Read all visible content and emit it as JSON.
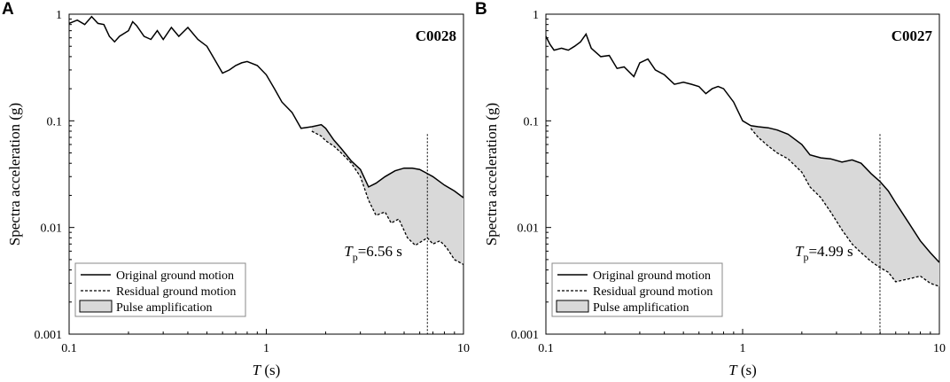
{
  "chart_data": [
    {
      "panel": "A",
      "type": "line",
      "record": "C0028",
      "xlabel_main": "T",
      "xlabel_unit": " (s)",
      "ylabel": "Spectra acceleration (g)",
      "xscale": "log",
      "yscale": "log",
      "xlim": [
        0.1,
        10
      ],
      "ylim": [
        0.001,
        1
      ],
      "x_ticks": [
        "0.1",
        "1",
        "10"
      ],
      "y_ticks": [
        "0.001",
        "0.01",
        "0.1",
        "1"
      ],
      "tp_main": "T",
      "tp_sub": "p",
      "tp_value": "=6.56 s",
      "tp": 6.56,
      "legend": [
        "Original ground motion",
        "Residual ground motion",
        "Pulse amplification"
      ],
      "series": [
        {
          "name": "Original ground motion",
          "x": [
            0.1,
            0.11,
            0.12,
            0.13,
            0.14,
            0.15,
            0.16,
            0.17,
            0.18,
            0.2,
            0.21,
            0.22,
            0.24,
            0.26,
            0.28,
            0.3,
            0.33,
            0.36,
            0.4,
            0.45,
            0.5,
            0.55,
            0.6,
            0.65,
            0.7,
            0.75,
            0.8,
            0.9,
            1.0,
            1.1,
            1.2,
            1.35,
            1.5,
            1.7,
            1.9,
            2.0,
            2.2,
            2.4,
            2.7,
            3.0,
            3.3,
            3.6,
            4.0,
            4.5,
            5.0,
            5.5,
            6.0,
            6.56,
            7.0,
            8.0,
            9.0,
            10.0
          ],
          "y": [
            0.82,
            0.88,
            0.8,
            0.95,
            0.82,
            0.8,
            0.62,
            0.55,
            0.62,
            0.7,
            0.85,
            0.78,
            0.62,
            0.58,
            0.7,
            0.58,
            0.75,
            0.62,
            0.75,
            0.58,
            0.5,
            0.37,
            0.28,
            0.3,
            0.33,
            0.35,
            0.36,
            0.33,
            0.27,
            0.2,
            0.15,
            0.12,
            0.085,
            0.088,
            0.092,
            0.085,
            0.066,
            0.055,
            0.042,
            0.035,
            0.024,
            0.026,
            0.03,
            0.034,
            0.036,
            0.036,
            0.035,
            0.032,
            0.03,
            0.025,
            0.022,
            0.019
          ]
        },
        {
          "name": "Residual ground motion",
          "x": [
            1.7,
            1.9,
            2.0,
            2.2,
            2.4,
            2.7,
            3.0,
            3.3,
            3.6,
            4.0,
            4.3,
            4.7,
            5.2,
            5.7,
            6.2,
            6.56,
            7.0,
            7.6,
            8.2,
            9.0,
            10.0
          ],
          "y": [
            0.08,
            0.072,
            0.065,
            0.058,
            0.05,
            0.04,
            0.03,
            0.018,
            0.013,
            0.014,
            0.011,
            0.012,
            0.008,
            0.0068,
            0.0075,
            0.008,
            0.007,
            0.0075,
            0.0065,
            0.005,
            0.0045
          ]
        }
      ]
    },
    {
      "panel": "B",
      "type": "line",
      "record": "C0027",
      "xlabel_main": "T",
      "xlabel_unit": " (s)",
      "ylabel": "Spectra acceleration (g)",
      "xscale": "log",
      "yscale": "log",
      "xlim": [
        0.1,
        10
      ],
      "ylim": [
        0.001,
        1
      ],
      "x_ticks": [
        "0.1",
        "1",
        "10"
      ],
      "y_ticks": [
        "0.001",
        "0.01",
        "0.1",
        "1"
      ],
      "tp_main": "T",
      "tp_sub": "p",
      "tp_value": "=4.99 s",
      "tp": 4.99,
      "legend": [
        "Original ground motion",
        "Residual ground motion",
        "Pulse amplification"
      ],
      "series": [
        {
          "name": "Original ground motion",
          "x": [
            0.1,
            0.105,
            0.11,
            0.12,
            0.13,
            0.14,
            0.15,
            0.16,
            0.17,
            0.19,
            0.21,
            0.23,
            0.25,
            0.28,
            0.3,
            0.33,
            0.36,
            0.4,
            0.45,
            0.5,
            0.55,
            0.6,
            0.65,
            0.7,
            0.75,
            0.8,
            0.9,
            1.0,
            1.1,
            1.2,
            1.35,
            1.5,
            1.7,
            2.0,
            2.2,
            2.5,
            2.8,
            3.2,
            3.6,
            4.0,
            4.5,
            4.99,
            5.5,
            6.0,
            7.0,
            8.0,
            9.0,
            10.0
          ],
          "y": [
            0.62,
            0.52,
            0.46,
            0.48,
            0.46,
            0.5,
            0.55,
            0.65,
            0.48,
            0.4,
            0.41,
            0.31,
            0.32,
            0.26,
            0.35,
            0.38,
            0.3,
            0.27,
            0.22,
            0.23,
            0.22,
            0.21,
            0.18,
            0.2,
            0.21,
            0.2,
            0.15,
            0.1,
            0.09,
            0.088,
            0.086,
            0.082,
            0.075,
            0.06,
            0.048,
            0.045,
            0.044,
            0.041,
            0.043,
            0.04,
            0.032,
            0.027,
            0.022,
            0.017,
            0.011,
            0.0075,
            0.0058,
            0.0047
          ]
        },
        {
          "name": "Residual ground motion",
          "x": [
            1.1,
            1.2,
            1.35,
            1.5,
            1.7,
            2.0,
            2.2,
            2.5,
            2.8,
            3.2,
            3.6,
            4.0,
            4.5,
            4.99,
            5.5,
            6.0,
            7.0,
            8.0,
            9.0,
            10.0
          ],
          "y": [
            0.085,
            0.07,
            0.058,
            0.05,
            0.044,
            0.033,
            0.024,
            0.019,
            0.014,
            0.0095,
            0.007,
            0.0058,
            0.0048,
            0.0042,
            0.0038,
            0.0031,
            0.0033,
            0.0035,
            0.003,
            0.0028
          ]
        }
      ]
    }
  ]
}
